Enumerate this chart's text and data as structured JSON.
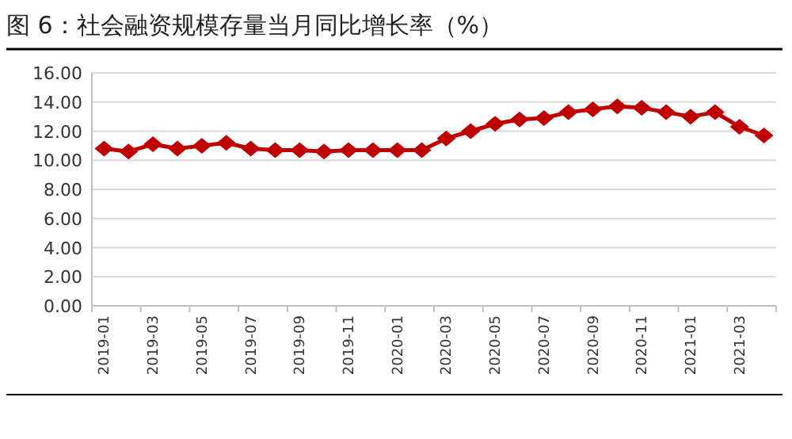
{
  "chart_data": {
    "type": "line",
    "title": "图 6：社会融资规模存量当月同比增长率（%）",
    "categories": [
      "2019-01",
      null,
      "2019-03",
      null,
      "2019-05",
      null,
      "2019-07",
      null,
      "2019-09",
      null,
      "2019-11",
      null,
      "2020-01",
      null,
      "2020-03",
      null,
      "2020-05",
      null,
      "2020-07",
      null,
      "2020-09",
      null,
      "2020-11",
      null,
      "2021-01",
      null,
      "2021-03",
      null
    ],
    "series": [
      {
        "color": "#c00000",
        "values": [
          10.8,
          10.6,
          11.1,
          10.8,
          11.0,
          11.2,
          10.8,
          10.7,
          10.7,
          10.6,
          10.7,
          10.7,
          10.7,
          10.7,
          11.5,
          12.0,
          12.5,
          12.8,
          12.9,
          13.3,
          13.5,
          13.7,
          13.6,
          13.3,
          13.0,
          13.3,
          12.3,
          11.7
        ]
      }
    ],
    "ylim": [
      0,
      16
    ],
    "yticks": [
      {
        "value": 0,
        "label": "0.00"
      },
      {
        "value": 2,
        "label": "2.00"
      },
      {
        "value": 4,
        "label": "4.00"
      },
      {
        "value": 6,
        "label": "6.00"
      },
      {
        "value": 8,
        "label": "8.00"
      },
      {
        "value": 10,
        "label": "10.00"
      },
      {
        "value": 12,
        "label": "12.00"
      },
      {
        "value": 14,
        "label": "14.00"
      },
      {
        "value": 16,
        "label": "16.00"
      }
    ],
    "grid": "y",
    "marker": "diamond",
    "line_style": "solid"
  }
}
